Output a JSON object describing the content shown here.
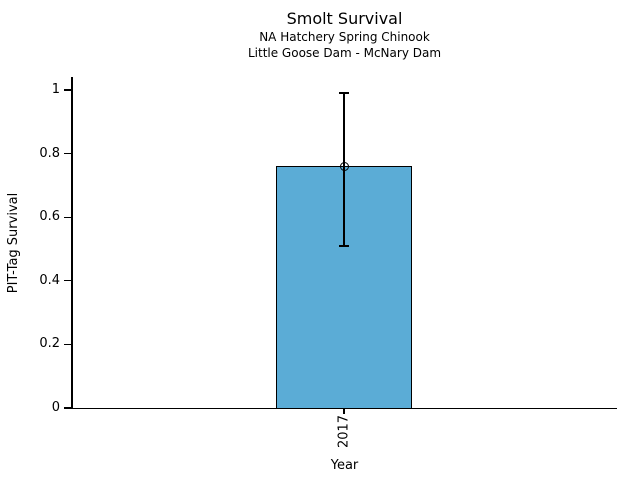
{
  "chart_data": {
    "type": "bar",
    "title": "Smolt Survival",
    "subtitle1": "NA Hatchery Spring Chinook",
    "subtitle2": "Little Goose Dam - McNary Dam",
    "xlabel": "Year",
    "ylabel": "PIT-Tag Survival",
    "categories": [
      "2017"
    ],
    "values": [
      0.76
    ],
    "error_low": [
      0.51
    ],
    "error_high": [
      0.99
    ],
    "yticks": [
      0,
      0.2,
      0.4,
      0.6,
      0.8,
      1
    ],
    "ylim": [
      0,
      1.04
    ],
    "grid": false,
    "legend": "none",
    "bar_color": "#5BACD6",
    "edge_color": "#000000",
    "marker": "open-circle"
  }
}
